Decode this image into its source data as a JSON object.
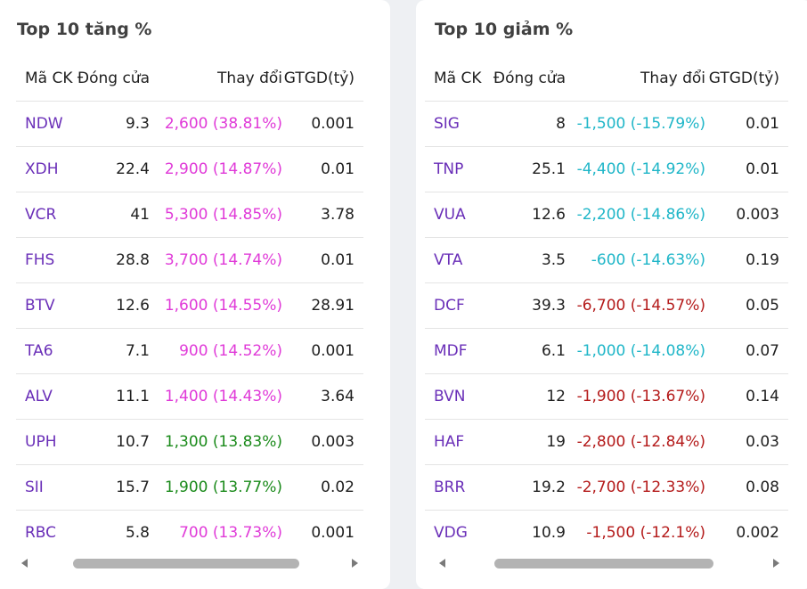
{
  "colors": {
    "symbol": "#6a2fb8",
    "ceiling": "#e03ad8",
    "up": "#1a8a1a",
    "floor": "#1fb6c8",
    "down": "#b41a1a"
  },
  "headers": {
    "symbol": "Mã CK",
    "close": "Đóng cửa",
    "change": "Thay đổi",
    "value": "GTGD(tỷ)"
  },
  "gainers": {
    "title": "Top 10 tăng %",
    "rows": [
      {
        "symbol": "NDW",
        "close": "9.3",
        "change": "2,600 (38.81%)",
        "value": "0.001",
        "status": "ceiling"
      },
      {
        "symbol": "XDH",
        "close": "22.4",
        "change": "2,900 (14.87%)",
        "value": "0.01",
        "status": "ceiling"
      },
      {
        "symbol": "VCR",
        "close": "41",
        "change": "5,300 (14.85%)",
        "value": "3.78",
        "status": "ceiling"
      },
      {
        "symbol": "FHS",
        "close": "28.8",
        "change": "3,700 (14.74%)",
        "value": "0.01",
        "status": "ceiling"
      },
      {
        "symbol": "BTV",
        "close": "12.6",
        "change": "1,600 (14.55%)",
        "value": "28.91",
        "status": "ceiling"
      },
      {
        "symbol": "TA6",
        "close": "7.1",
        "change": "900 (14.52%)",
        "value": "0.001",
        "status": "ceiling"
      },
      {
        "symbol": "ALV",
        "close": "11.1",
        "change": "1,400 (14.43%)",
        "value": "3.64",
        "status": "ceiling"
      },
      {
        "symbol": "UPH",
        "close": "10.7",
        "change": "1,300 (13.83%)",
        "value": "0.003",
        "status": "up"
      },
      {
        "symbol": "SII",
        "close": "15.7",
        "change": "1,900 (13.77%)",
        "value": "0.02",
        "status": "up"
      },
      {
        "symbol": "RBC",
        "close": "5.8",
        "change": "700 (13.73%)",
        "value": "0.001",
        "status": "ceiling"
      }
    ]
  },
  "losers": {
    "title": "Top 10 giảm %",
    "rows": [
      {
        "symbol": "SIG",
        "close": "8",
        "change": "-1,500 (-15.79%)",
        "value": "0.01",
        "status": "floor"
      },
      {
        "symbol": "TNP",
        "close": "25.1",
        "change": "-4,400 (-14.92%)",
        "value": "0.01",
        "status": "floor"
      },
      {
        "symbol": "VUA",
        "close": "12.6",
        "change": "-2,200 (-14.86%)",
        "value": "0.003",
        "status": "floor"
      },
      {
        "symbol": "VTA",
        "close": "3.5",
        "change": "-600 (-14.63%)",
        "value": "0.19",
        "status": "floor"
      },
      {
        "symbol": "DCF",
        "close": "39.3",
        "change": "-6,700 (-14.57%)",
        "value": "0.05",
        "status": "down"
      },
      {
        "symbol": "MDF",
        "close": "6.1",
        "change": "-1,000 (-14.08%)",
        "value": "0.07",
        "status": "floor"
      },
      {
        "symbol": "BVN",
        "close": "12",
        "change": "-1,900 (-13.67%)",
        "value": "0.14",
        "status": "down"
      },
      {
        "symbol": "HAF",
        "close": "19",
        "change": "-2,800 (-12.84%)",
        "value": "0.03",
        "status": "down"
      },
      {
        "symbol": "BRR",
        "close": "19.2",
        "change": "-2,700 (-12.33%)",
        "value": "0.08",
        "status": "down"
      },
      {
        "symbol": "VDG",
        "close": "10.9",
        "change": "-1,500 (-12.1%)",
        "value": "0.002",
        "status": "down"
      }
    ]
  }
}
